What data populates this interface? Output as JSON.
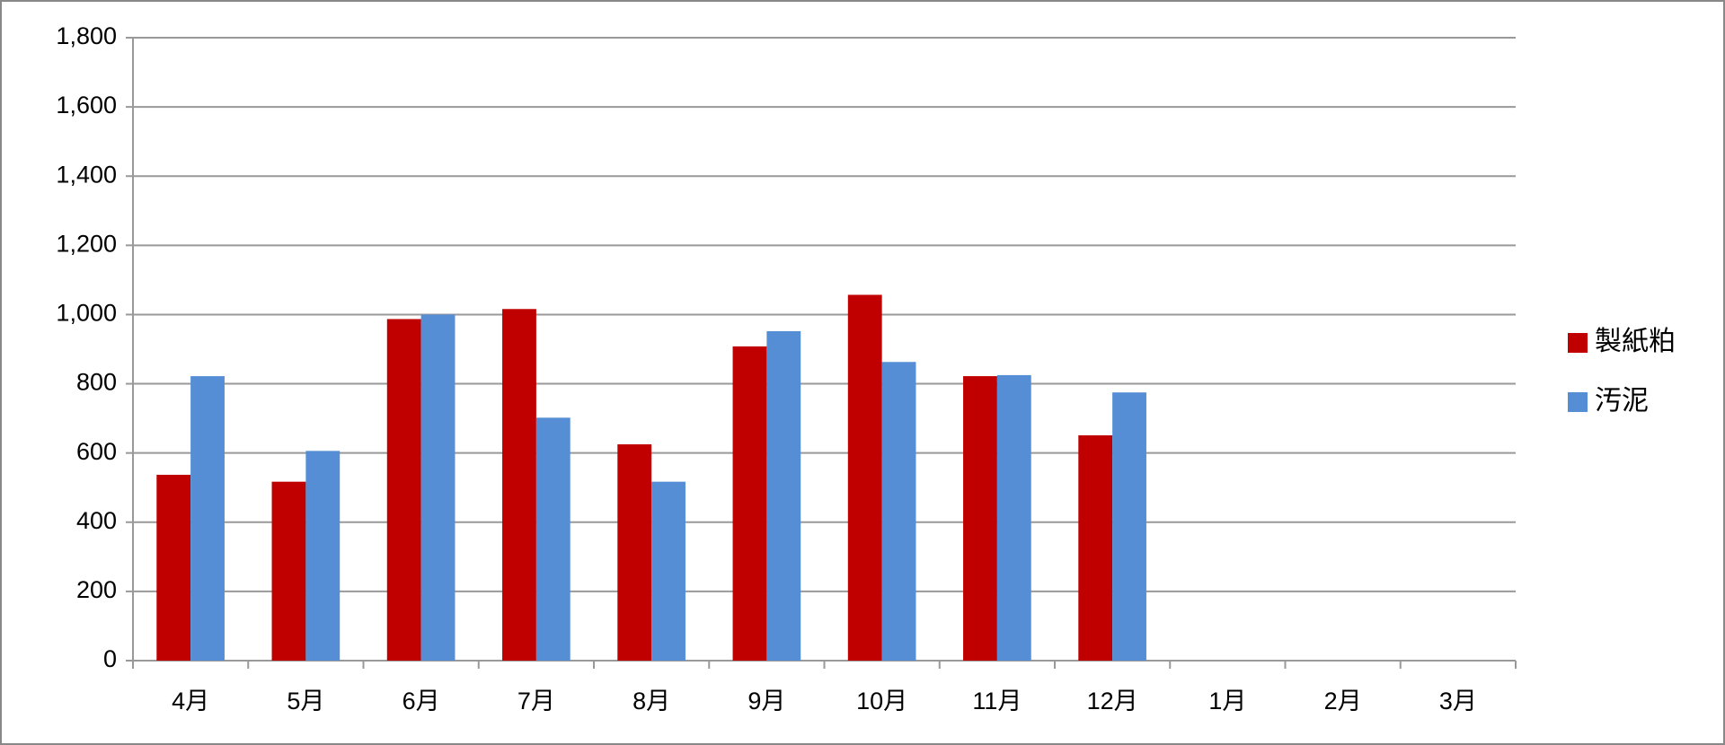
{
  "chart_data": {
    "type": "bar",
    "categories": [
      "4月",
      "5月",
      "6月",
      "7月",
      "8月",
      "9月",
      "10月",
      "11月",
      "12月",
      "1月",
      "2月",
      "3月"
    ],
    "series": [
      {
        "name": "製紙粕",
        "color": "#c00000",
        "values": [
          537,
          517,
          987,
          1016,
          625,
          908,
          1057,
          822,
          651,
          null,
          null,
          null
        ]
      },
      {
        "name": "汚泥",
        "color": "#558ed5",
        "values": [
          822,
          606,
          1000,
          702,
          517,
          952,
          863,
          825,
          775,
          null,
          null,
          null
        ]
      }
    ],
    "ylim": [
      0,
      1800
    ],
    "yticks": [
      0,
      200,
      400,
      600,
      800,
      {
        "value": 1000,
        "label": "1,000"
      },
      {
        "value": 1200,
        "label": "1,200"
      },
      {
        "value": 1400,
        "label": "1,400"
      },
      {
        "value": 1600,
        "label": "1,600"
      },
      {
        "value": 1800,
        "label": "1,800"
      }
    ],
    "grid": true,
    "legend": "right"
  }
}
